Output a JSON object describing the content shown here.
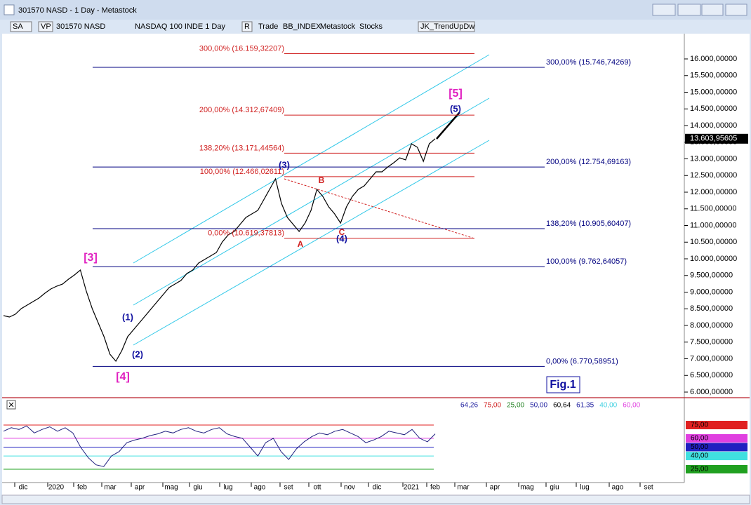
{
  "window": {
    "title": "301570 NASD - 1 Day - Metastock"
  },
  "toolbar": {
    "items": [
      "SA",
      "VP",
      "301570 NASD",
      "NASDAQ 100 INDE  1 Day",
      "R",
      "Trade",
      "BB_INDEX",
      "Metastock",
      "Stocks",
      "JK_TrendUpDw"
    ]
  },
  "chart_data": {
    "type": "line",
    "ylim": [
      5874,
      16758
    ],
    "yticks": [
      {
        "value": 6000,
        "label": "6.000,00000"
      },
      {
        "value": 6500,
        "label": "6.500,00000"
      },
      {
        "value": 7000,
        "label": "7.000,00000"
      },
      {
        "value": 7500,
        "label": "7.500,00000"
      },
      {
        "value": 8000,
        "label": "8.000,00000"
      },
      {
        "value": 8500,
        "label": "8.500,00000"
      },
      {
        "value": 9000,
        "label": "9.000,00000"
      },
      {
        "value": 9500,
        "label": "9.500,00000"
      },
      {
        "value": 10000,
        "label": "10.000,00000"
      },
      {
        "value": 10500,
        "label": "10.500,00000"
      },
      {
        "value": 11000,
        "label": "11.000,00000"
      },
      {
        "value": 11500,
        "label": "11.500,00000"
      },
      {
        "value": 12000,
        "label": "12.000,00000"
      },
      {
        "value": 12500,
        "label": "12.500,00000"
      },
      {
        "value": 13000,
        "label": "13.000,00000"
      },
      {
        "value": 13500,
        "label": "13.500,00000"
      },
      {
        "value": 14000,
        "label": "14.000,00000"
      },
      {
        "value": 14500,
        "label": "14.500,00000"
      },
      {
        "value": 15000,
        "label": "15.000,00000"
      },
      {
        "value": 15500,
        "label": "15.500,00000"
      },
      {
        "value": 16000,
        "label": "16.000,00000"
      }
    ],
    "price": {
      "color": "#000000",
      "values": [
        8295,
        8253,
        8337,
        8505,
        8611,
        8716,
        8821,
        8968,
        9095,
        9179,
        9242,
        9389,
        9516,
        9663,
        9032,
        8505,
        8084,
        7663,
        7137,
        6926,
        7242,
        7663,
        7874,
        8084,
        8295,
        8505,
        8716,
        8926,
        9137,
        9242,
        9347,
        9558,
        9663,
        9874,
        9979,
        10084,
        10189,
        10505,
        10716,
        10821,
        11032,
        11242,
        11347,
        11453,
        11768,
        12084,
        12400,
        11663,
        11242,
        11032,
        10821,
        11074,
        11453,
        12084,
        11874,
        11558,
        11347,
        11074,
        11558,
        11874,
        12084,
        12189,
        12400,
        12611,
        12611,
        12758,
        12884,
        13032,
        12968,
        13453,
        13347,
        12926,
        13453,
        13603.95605
      ]
    },
    "last_price": {
      "value": 13603.95605,
      "label": "13.603,95605"
    },
    "fib_blue": {
      "color": "#000080",
      "levels": [
        {
          "value": 15746.74269,
          "label": "300,00% (15.746,74269)"
        },
        {
          "value": 12754.69163,
          "label": "200,00% (12.754,69163)"
        },
        {
          "value": 10905.60407,
          "label": "138,20% (10.905,60407)"
        },
        {
          "value": 9762.64057,
          "label": "100,00% (9.762,64057)"
        },
        {
          "value": 6770.58951,
          "label": "0,00% (6.770,58951)"
        }
      ]
    },
    "fib_red": {
      "color": "#d02020",
      "levels": [
        {
          "value": 16159.32207,
          "label": "300,00% (16.159,32207)"
        },
        {
          "value": 14312.67409,
          "label": "200,00% (14.312,67409)"
        },
        {
          "value": 13171.44564,
          "label": "138,20% (13.171,44564)"
        },
        {
          "value": 12466.02611,
          "label": "100,00% (12.466,02611)"
        },
        {
          "value": 10619.37813,
          "label": "0,00% (10.619,37813)"
        }
      ]
    },
    "wave_labels": [
      "[3]",
      "(1)",
      "(2)",
      "[4]",
      "(3)",
      "B",
      "A",
      "C",
      "(4)",
      "(5)",
      "[5]"
    ],
    "months": [
      "dic",
      "2020",
      "feb",
      "mar",
      "apr",
      "mag",
      "giu",
      "lug",
      "ago",
      "set",
      "ott",
      "nov",
      "dic",
      "2021",
      "feb",
      "mar",
      "apr",
      "mag",
      "giu",
      "lug",
      "ago",
      "set"
    ],
    "fig_label": "Fig.1"
  },
  "indicator": {
    "color": "#202080",
    "legend": [
      {
        "label": "64,26",
        "color": "#2020a0"
      },
      {
        "label": "75,00",
        "color": "#d02020"
      },
      {
        "label": "25,00",
        "color": "#208020"
      },
      {
        "label": "50,00",
        "color": "#2020a0"
      },
      {
        "label": "60,64",
        "color": "#000000"
      },
      {
        "label": "61,35",
        "color": "#2020a0"
      },
      {
        "label": "40,00",
        "color": "#40d0e0"
      },
      {
        "label": "60,00",
        "color": "#e040e0"
      }
    ],
    "ylim": [
      8.3,
      87.7
    ],
    "levels": [
      {
        "value": 75,
        "label": "75,00",
        "color": "#e02020"
      },
      {
        "value": 60,
        "label": "60,00",
        "color": "#e040e0"
      },
      {
        "value": 50,
        "label": "50,00",
        "color": "#2020c0"
      },
      {
        "value": 40,
        "label": "40,00",
        "color": "#40e0e0"
      },
      {
        "value": 25,
        "label": "25,00",
        "color": "#20a020"
      }
    ],
    "values": [
      68,
      72,
      70,
      74,
      66,
      70,
      73,
      68,
      72,
      66,
      50,
      38,
      30,
      28,
      40,
      45,
      55,
      58,
      60,
      63,
      65,
      68,
      66,
      70,
      72,
      68,
      66,
      70,
      72,
      65,
      62,
      60,
      50,
      40,
      55,
      60,
      45,
      36,
      48,
      56,
      62,
      66,
      64,
      68,
      70,
      66,
      62,
      55,
      58,
      62,
      68,
      66,
      64,
      70,
      60,
      56,
      65
    ]
  }
}
